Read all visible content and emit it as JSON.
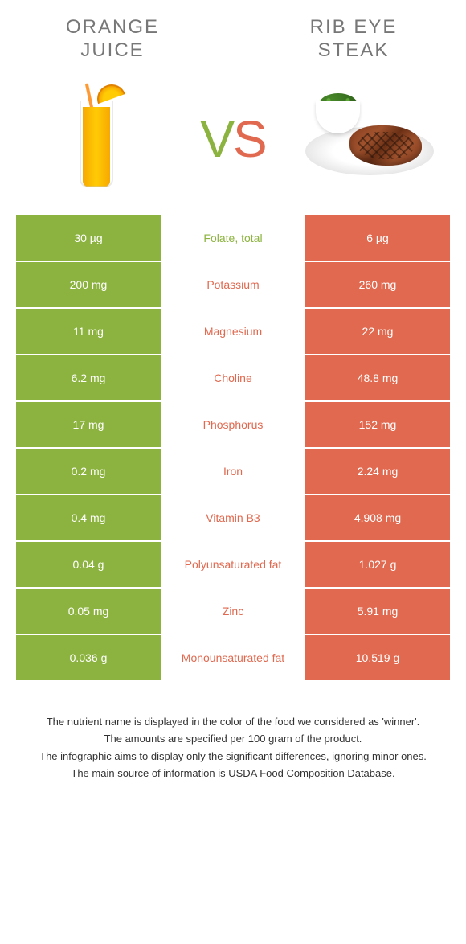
{
  "colors": {
    "green": "#8cb33f",
    "orange": "#e0694f",
    "title_text": "#777777",
    "footer_text": "#333333",
    "white": "#ffffff"
  },
  "foods": {
    "left": {
      "name": "ORANGE JUICE",
      "color_key": "green"
    },
    "right": {
      "name": "RIB EYE STEAK",
      "color_key": "orange"
    }
  },
  "vs_label": {
    "v": "V",
    "s": "S"
  },
  "rows": [
    {
      "left": "30 µg",
      "label": "Folate, total",
      "right": "6 µg",
      "winner": "left"
    },
    {
      "left": "200 mg",
      "label": "Potassium",
      "right": "260 mg",
      "winner": "right"
    },
    {
      "left": "11 mg",
      "label": "Magnesium",
      "right": "22 mg",
      "winner": "right"
    },
    {
      "left": "6.2 mg",
      "label": "Choline",
      "right": "48.8 mg",
      "winner": "right"
    },
    {
      "left": "17 mg",
      "label": "Phosphorus",
      "right": "152 mg",
      "winner": "right"
    },
    {
      "left": "0.2 mg",
      "label": "Iron",
      "right": "2.24 mg",
      "winner": "right"
    },
    {
      "left": "0.4 mg",
      "label": "Vitamin B3",
      "right": "4.908 mg",
      "winner": "right"
    },
    {
      "left": "0.04 g",
      "label": "Polyunsaturated fat",
      "right": "1.027 g",
      "winner": "right"
    },
    {
      "left": "0.05 mg",
      "label": "Zinc",
      "right": "5.91 mg",
      "winner": "right"
    },
    {
      "left": "0.036 g",
      "label": "Monounsaturated fat",
      "right": "10.519 g",
      "winner": "right"
    }
  ],
  "footer": [
    "The nutrient name is displayed in the color of the food we considered as 'winner'.",
    "The amounts are specified per 100 gram of the product.",
    "The infographic aims to display only the significant differences, ignoring minor ones.",
    "The main source of information is USDA Food Composition Database."
  ]
}
